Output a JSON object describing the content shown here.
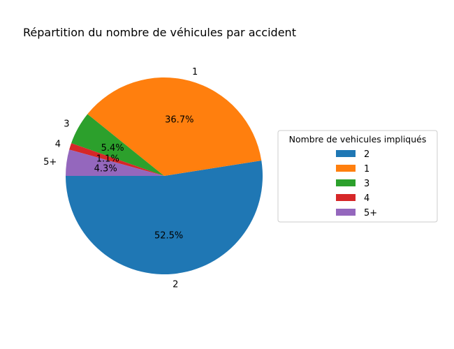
{
  "chart_data": {
    "type": "pie",
    "title": "Répartition du nombre de véhicules par accident",
    "categories": [
      "2",
      "1",
      "3",
      "4",
      "5+"
    ],
    "values": [
      52.5,
      36.7,
      5.4,
      1.1,
      4.3
    ],
    "labels_pct": [
      "52.5%",
      "36.7%",
      "5.4%",
      "1.1%",
      "4.3%"
    ],
    "colors": [
      "#1f77b4",
      "#ff7f0e",
      "#2ca02c",
      "#d62728",
      "#9467bd"
    ],
    "start_angle_deg": 180,
    "direction": "counterclockwise",
    "legend": {
      "title": "Nombre de vehicules impliqués",
      "placement": "right"
    }
  }
}
